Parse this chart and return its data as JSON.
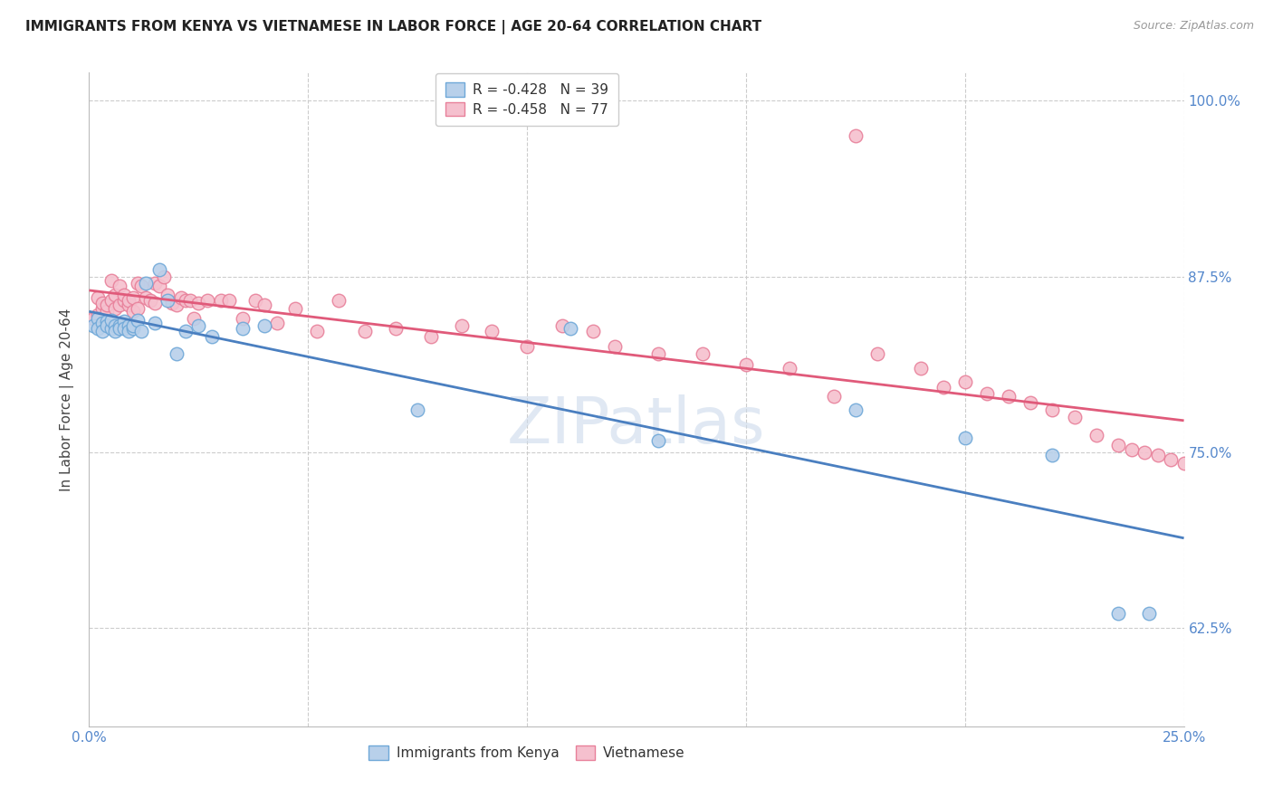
{
  "title": "IMMIGRANTS FROM KENYA VS VIETNAMESE IN LABOR FORCE | AGE 20-64 CORRELATION CHART",
  "source": "Source: ZipAtlas.com",
  "ylabel": "In Labor Force | Age 20-64",
  "xlim": [
    0.0,
    0.25
  ],
  "ylim": [
    0.555,
    1.02
  ],
  "xticks": [
    0.0,
    0.05,
    0.1,
    0.15,
    0.2,
    0.25
  ],
  "xticklabels": [
    "0.0%",
    "",
    "",
    "",
    "",
    "25.0%"
  ],
  "yticks": [
    0.625,
    0.75,
    0.875,
    1.0
  ],
  "yticklabels": [
    "62.5%",
    "75.0%",
    "87.5%",
    "100.0%"
  ],
  "kenya_R": "-0.428",
  "kenya_N": "39",
  "viet_R": "-0.458",
  "viet_N": "77",
  "kenya_color": "#b8d0ea",
  "kenya_edge": "#6fa8d8",
  "viet_color": "#f5c0ce",
  "viet_edge": "#e8809a",
  "trend_kenya_color": "#4a7fc0",
  "trend_viet_color": "#e05a7a",
  "kenya_x": [
    0.001,
    0.002,
    0.002,
    0.003,
    0.003,
    0.004,
    0.004,
    0.005,
    0.005,
    0.006,
    0.006,
    0.007,
    0.007,
    0.008,
    0.008,
    0.009,
    0.009,
    0.01,
    0.01,
    0.011,
    0.012,
    0.013,
    0.015,
    0.016,
    0.018,
    0.02,
    0.022,
    0.025,
    0.028,
    0.035,
    0.04,
    0.075,
    0.11,
    0.13,
    0.175,
    0.2,
    0.22,
    0.235,
    0.242
  ],
  "kenya_y": [
    0.84,
    0.845,
    0.838,
    0.842,
    0.836,
    0.843,
    0.84,
    0.838,
    0.844,
    0.84,
    0.836,
    0.84,
    0.838,
    0.843,
    0.838,
    0.84,
    0.836,
    0.838,
    0.84,
    0.844,
    0.836,
    0.87,
    0.842,
    0.88,
    0.858,
    0.82,
    0.836,
    0.84,
    0.832,
    0.838,
    0.84,
    0.78,
    0.838,
    0.758,
    0.78,
    0.76,
    0.748,
    0.635,
    0.635
  ],
  "viet_x": [
    0.001,
    0.002,
    0.002,
    0.003,
    0.003,
    0.004,
    0.004,
    0.005,
    0.005,
    0.006,
    0.006,
    0.007,
    0.007,
    0.008,
    0.008,
    0.009,
    0.009,
    0.01,
    0.01,
    0.011,
    0.011,
    0.012,
    0.013,
    0.014,
    0.015,
    0.015,
    0.016,
    0.017,
    0.018,
    0.019,
    0.02,
    0.021,
    0.022,
    0.023,
    0.024,
    0.025,
    0.027,
    0.03,
    0.032,
    0.035,
    0.038,
    0.04,
    0.043,
    0.047,
    0.052,
    0.057,
    0.063,
    0.07,
    0.078,
    0.085,
    0.092,
    0.1,
    0.108,
    0.115,
    0.12,
    0.13,
    0.14,
    0.15,
    0.16,
    0.17,
    0.175,
    0.18,
    0.19,
    0.195,
    0.2,
    0.205,
    0.21,
    0.215,
    0.22,
    0.225,
    0.23,
    0.235,
    0.238,
    0.241,
    0.244,
    0.247,
    0.25
  ],
  "viet_y": [
    0.845,
    0.848,
    0.86,
    0.852,
    0.856,
    0.85,
    0.855,
    0.872,
    0.858,
    0.852,
    0.862,
    0.868,
    0.855,
    0.858,
    0.862,
    0.855,
    0.858,
    0.85,
    0.86,
    0.87,
    0.852,
    0.868,
    0.86,
    0.858,
    0.856,
    0.87,
    0.868,
    0.875,
    0.862,
    0.856,
    0.855,
    0.86,
    0.858,
    0.858,
    0.845,
    0.856,
    0.858,
    0.858,
    0.858,
    0.845,
    0.858,
    0.855,
    0.842,
    0.852,
    0.836,
    0.858,
    0.836,
    0.838,
    0.832,
    0.84,
    0.836,
    0.825,
    0.84,
    0.836,
    0.825,
    0.82,
    0.82,
    0.812,
    0.81,
    0.79,
    0.975,
    0.82,
    0.81,
    0.796,
    0.8,
    0.792,
    0.79,
    0.785,
    0.78,
    0.775,
    0.762,
    0.755,
    0.752,
    0.75,
    0.748,
    0.745,
    0.742
  ],
  "watermark": "ZIPatlas",
  "background_color": "#ffffff",
  "grid_color": "#cccccc"
}
